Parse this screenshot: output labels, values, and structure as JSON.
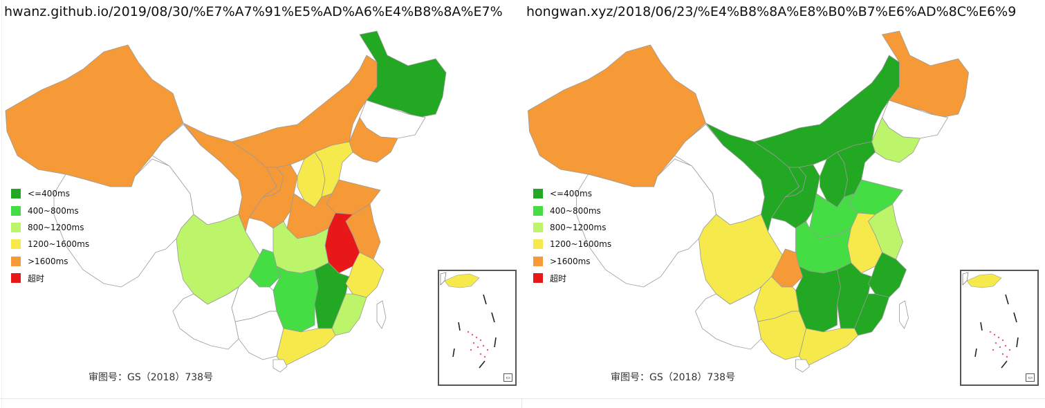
{
  "panels": [
    {
      "url": "hwanz.github.io/2019/08/30/%E7%A7%91%E5%AD%A6%E4%B8%8A%E7%",
      "approval": "审图号：GS（2018）738号",
      "regions": {
        "xinjiang": "gt1600",
        "tibet": "none",
        "qinghai": "none",
        "gansu": "gt1600",
        "neimenggu": "gt1600",
        "heilongjiang": "le400",
        "jilin": "none",
        "liaoning": "gt1600",
        "ningxia": "gt1600",
        "shaanxi": "gt1600",
        "shanxi": "1200to1600",
        "hebei": "1200to1600",
        "shandong": "gt1600",
        "henan": "gt1600",
        "anhui": "timeout",
        "jiangsu": "gt1600",
        "sichuan": "800to1200",
        "chongqing": "400to800",
        "hubei": "800to1200",
        "hunan": "400to800",
        "jiangxi": "le400",
        "zhejiang": "1200to1600",
        "fujian": "800to1200",
        "guangdong": "1200to1600",
        "guangxi": "none",
        "guizhou": "none",
        "yunnan": "none",
        "hainan": "none",
        "taiwan": "none"
      }
    },
    {
      "url": "hongwan.xyz/2018/06/23/%E4%B8%8A%E8%B0%B7%E6%AD%8C%E6%9",
      "approval": "审图号：GS（2018）738号",
      "regions": {
        "xinjiang": "gt1600",
        "tibet": "none",
        "qinghai": "none",
        "gansu": "le400",
        "neimenggu": "le400",
        "heilongjiang": "gt1600",
        "jilin": "none",
        "liaoning": "800to1200",
        "ningxia": "le400",
        "shaanxi": "le400",
        "shanxi": "le400",
        "hebei": "le400",
        "shandong": "400to800",
        "henan": "400to800",
        "anhui": "1200to1600",
        "jiangsu": "800to1200",
        "sichuan": "1200to1600",
        "chongqing": "gt1600",
        "hubei": "400to800",
        "hunan": "le400",
        "jiangxi": "le400",
        "zhejiang": "le400",
        "fujian": "le400",
        "guangdong": "1200to1600",
        "guangxi": "1200to1600",
        "guizhou": "1200to1600",
        "yunnan": "none",
        "hainan": "none",
        "taiwan": "none"
      }
    }
  ],
  "legend": [
    {
      "key": "le400",
      "label": "<=400ms",
      "color": "#22a822"
    },
    {
      "key": "400to800",
      "label": "400~800ms",
      "color": "#44dd44"
    },
    {
      "key": "800to1200",
      "label": "800~1200ms",
      "color": "#bdf56a"
    },
    {
      "key": "1200to1600",
      "label": "1200~1600ms",
      "color": "#f5e94c"
    },
    {
      "key": "gt1600",
      "label": ">1600ms",
      "color": "#f59a37"
    },
    {
      "key": "timeout",
      "label": "超时",
      "color": "#e81818"
    }
  ],
  "colors": {
    "none": "#ffffff",
    "border": "#9a9a9a",
    "coast": "#333333"
  }
}
